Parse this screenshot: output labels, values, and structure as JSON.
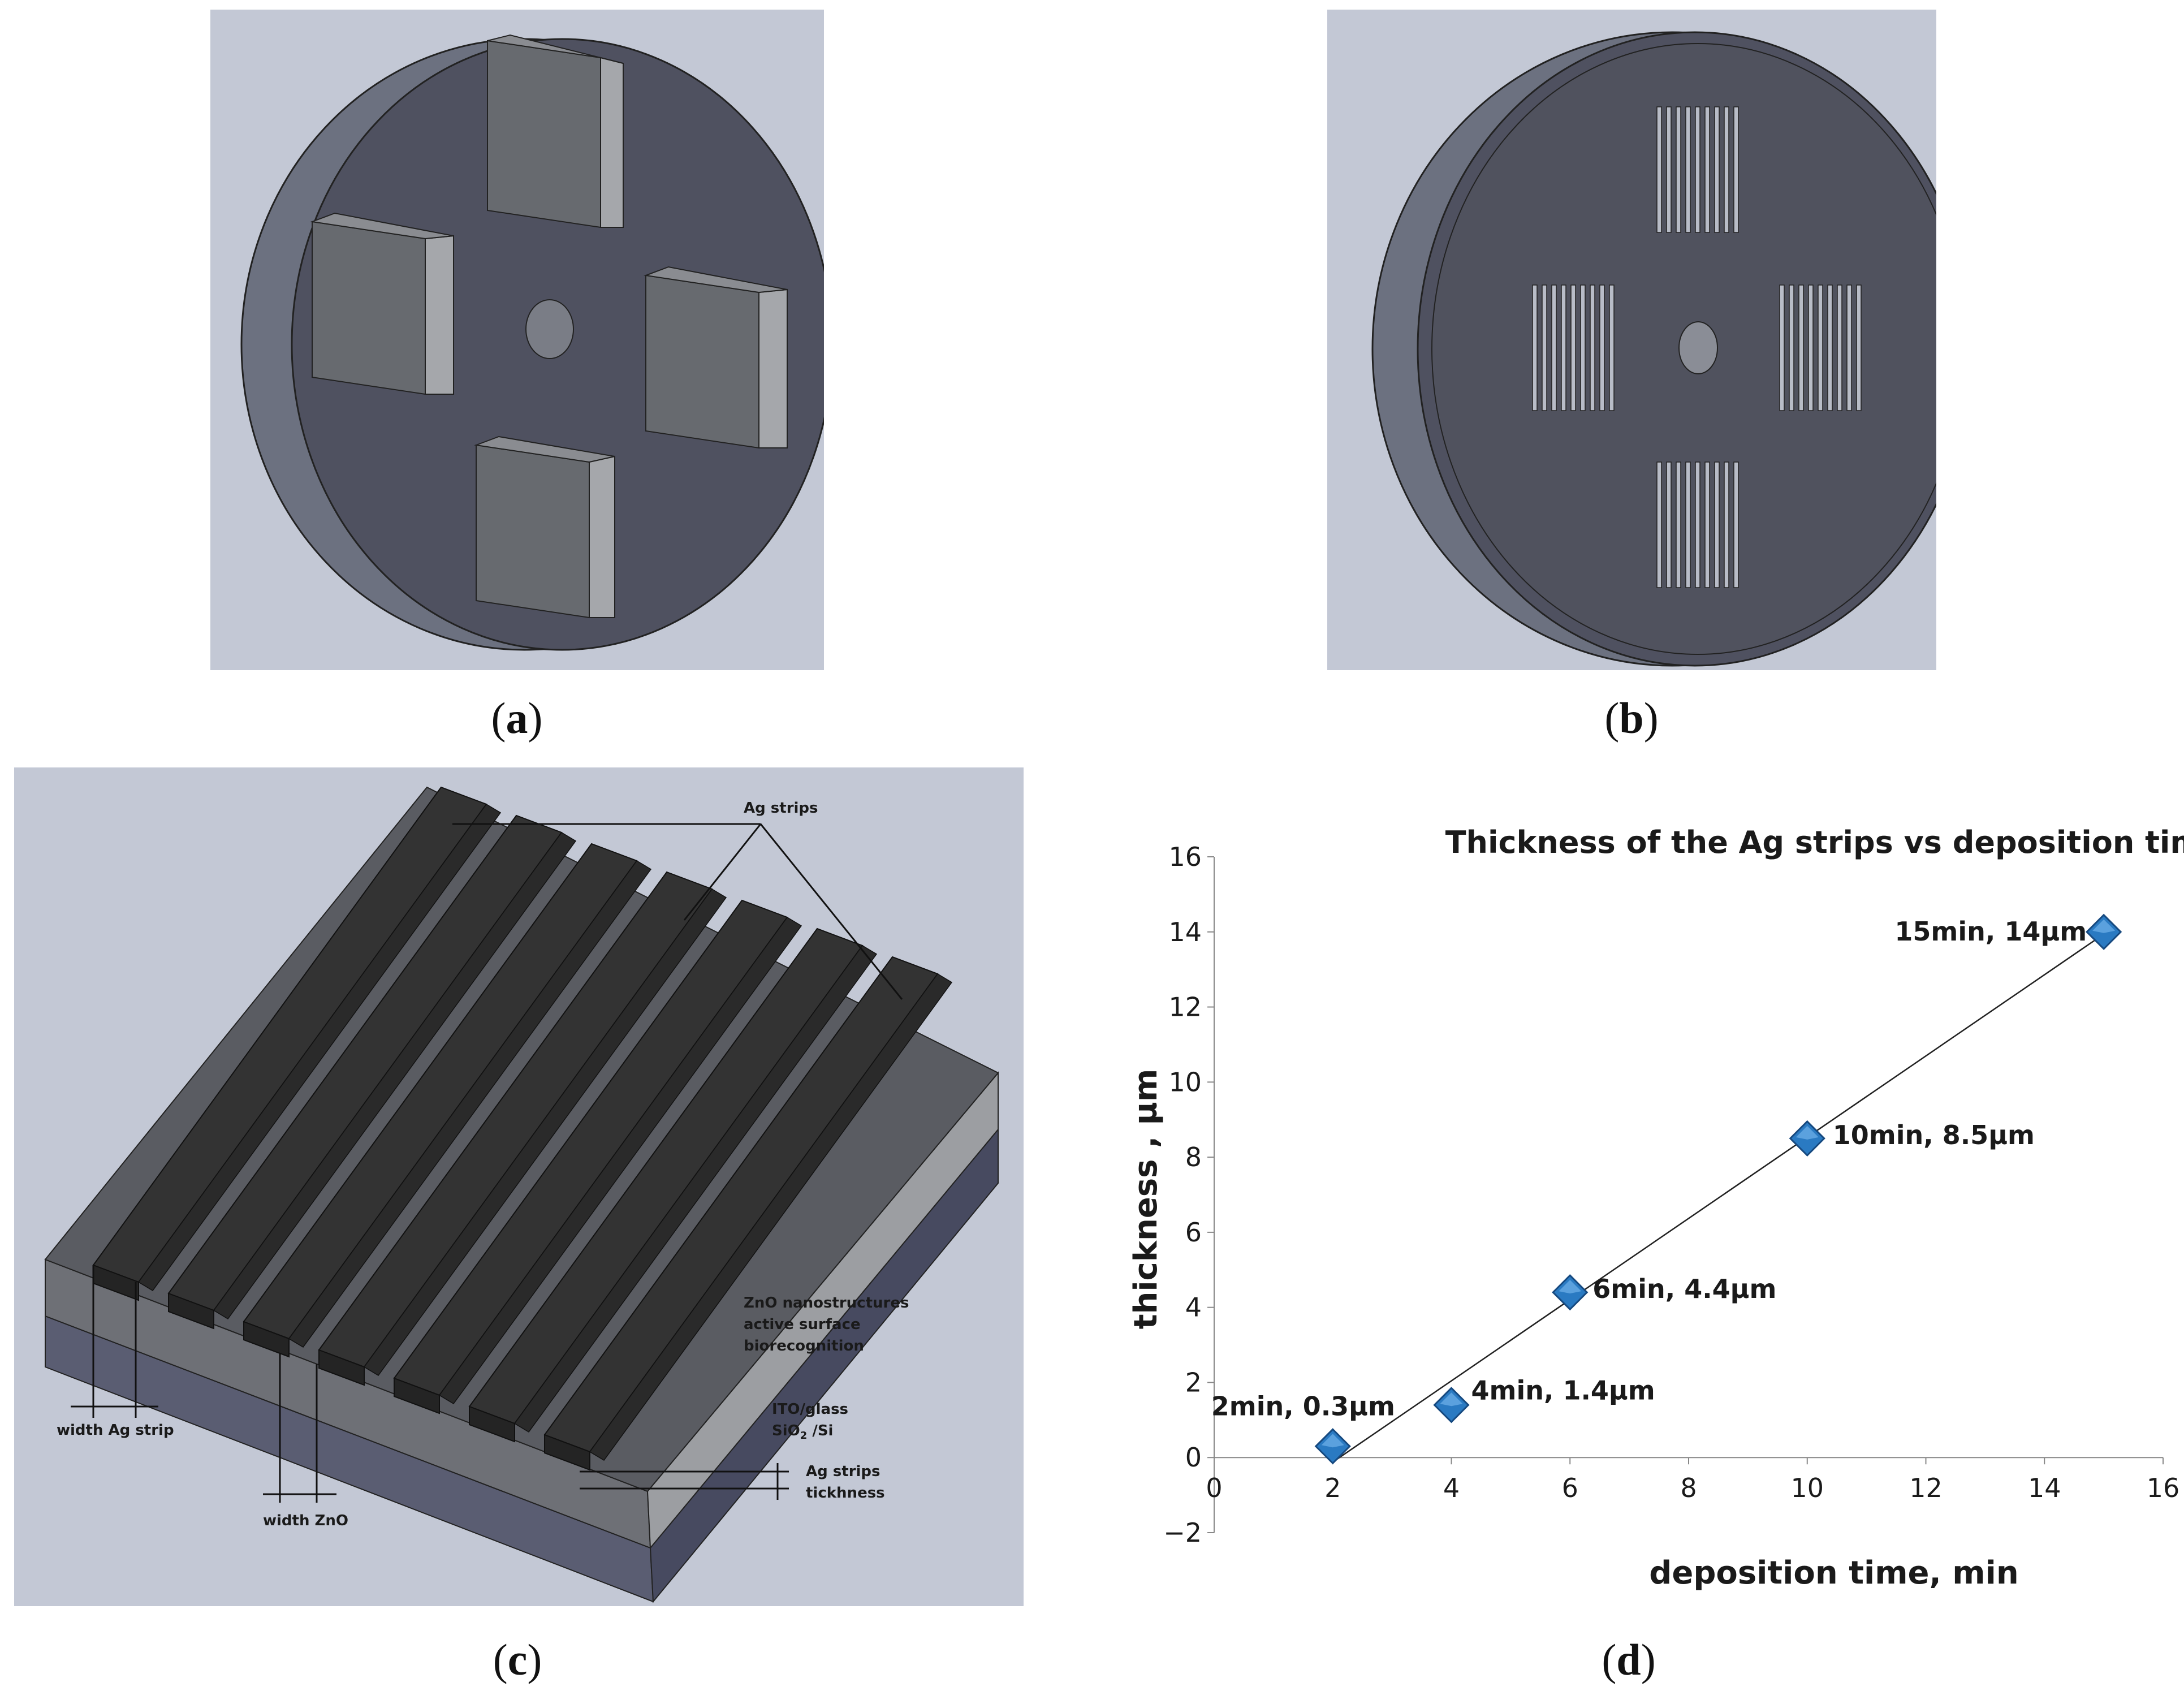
{
  "captions": {
    "a": "a",
    "b": "b",
    "c": "c",
    "d": "d"
  },
  "diagram_c": {
    "ag_strips": "Ag strips",
    "zno_line1": "ZnO nanostructures",
    "zno_line2": "active surface",
    "zno_line3": "biorecognition",
    "ito": "ITO/glass",
    "sio2": "SiO",
    "sio2_sub": "2",
    "si": " /Si",
    "thick_line1": "Ag strips",
    "thick_line2": "tickhness",
    "width_ag": "width Ag strip",
    "width_zno": "width ZnO"
  },
  "colors": {
    "background": "#c3c8d5",
    "disk_face": "#4f5160",
    "disk_rim": "#6c7180",
    "plate_face": "#505258",
    "plate_side": "#a8a9ac",
    "strip": "#333333",
    "marker": "#2a7ac2"
  },
  "chart_data": {
    "type": "scatter",
    "title": "Thickness of the Ag strips vs deposition time",
    "xlabel": "deposition time, min",
    "ylabel": "thickness , µm",
    "xlim": [
      0,
      16
    ],
    "ylim": [
      -2,
      16
    ],
    "xticks": [
      "0",
      "2",
      "4",
      "6",
      "8",
      "10",
      "12",
      "14",
      "16"
    ],
    "yticks": [
      "−2",
      "0",
      "2",
      "4",
      "6",
      "8",
      "10",
      "12",
      "14",
      "16"
    ],
    "points": [
      {
        "x": 2,
        "y": 0.3,
        "label": "2min, 0.3µm"
      },
      {
        "x": 4,
        "y": 1.4,
        "label": "4min, 1.4µm"
      },
      {
        "x": 6,
        "y": 4.4,
        "label": "6min, 4.4µm"
      },
      {
        "x": 10,
        "y": 8.5,
        "label": "10min, 8.5µm"
      },
      {
        "x": 15,
        "y": 14,
        "label": "15min, 14µm"
      }
    ],
    "trendline": true,
    "grid": false
  }
}
